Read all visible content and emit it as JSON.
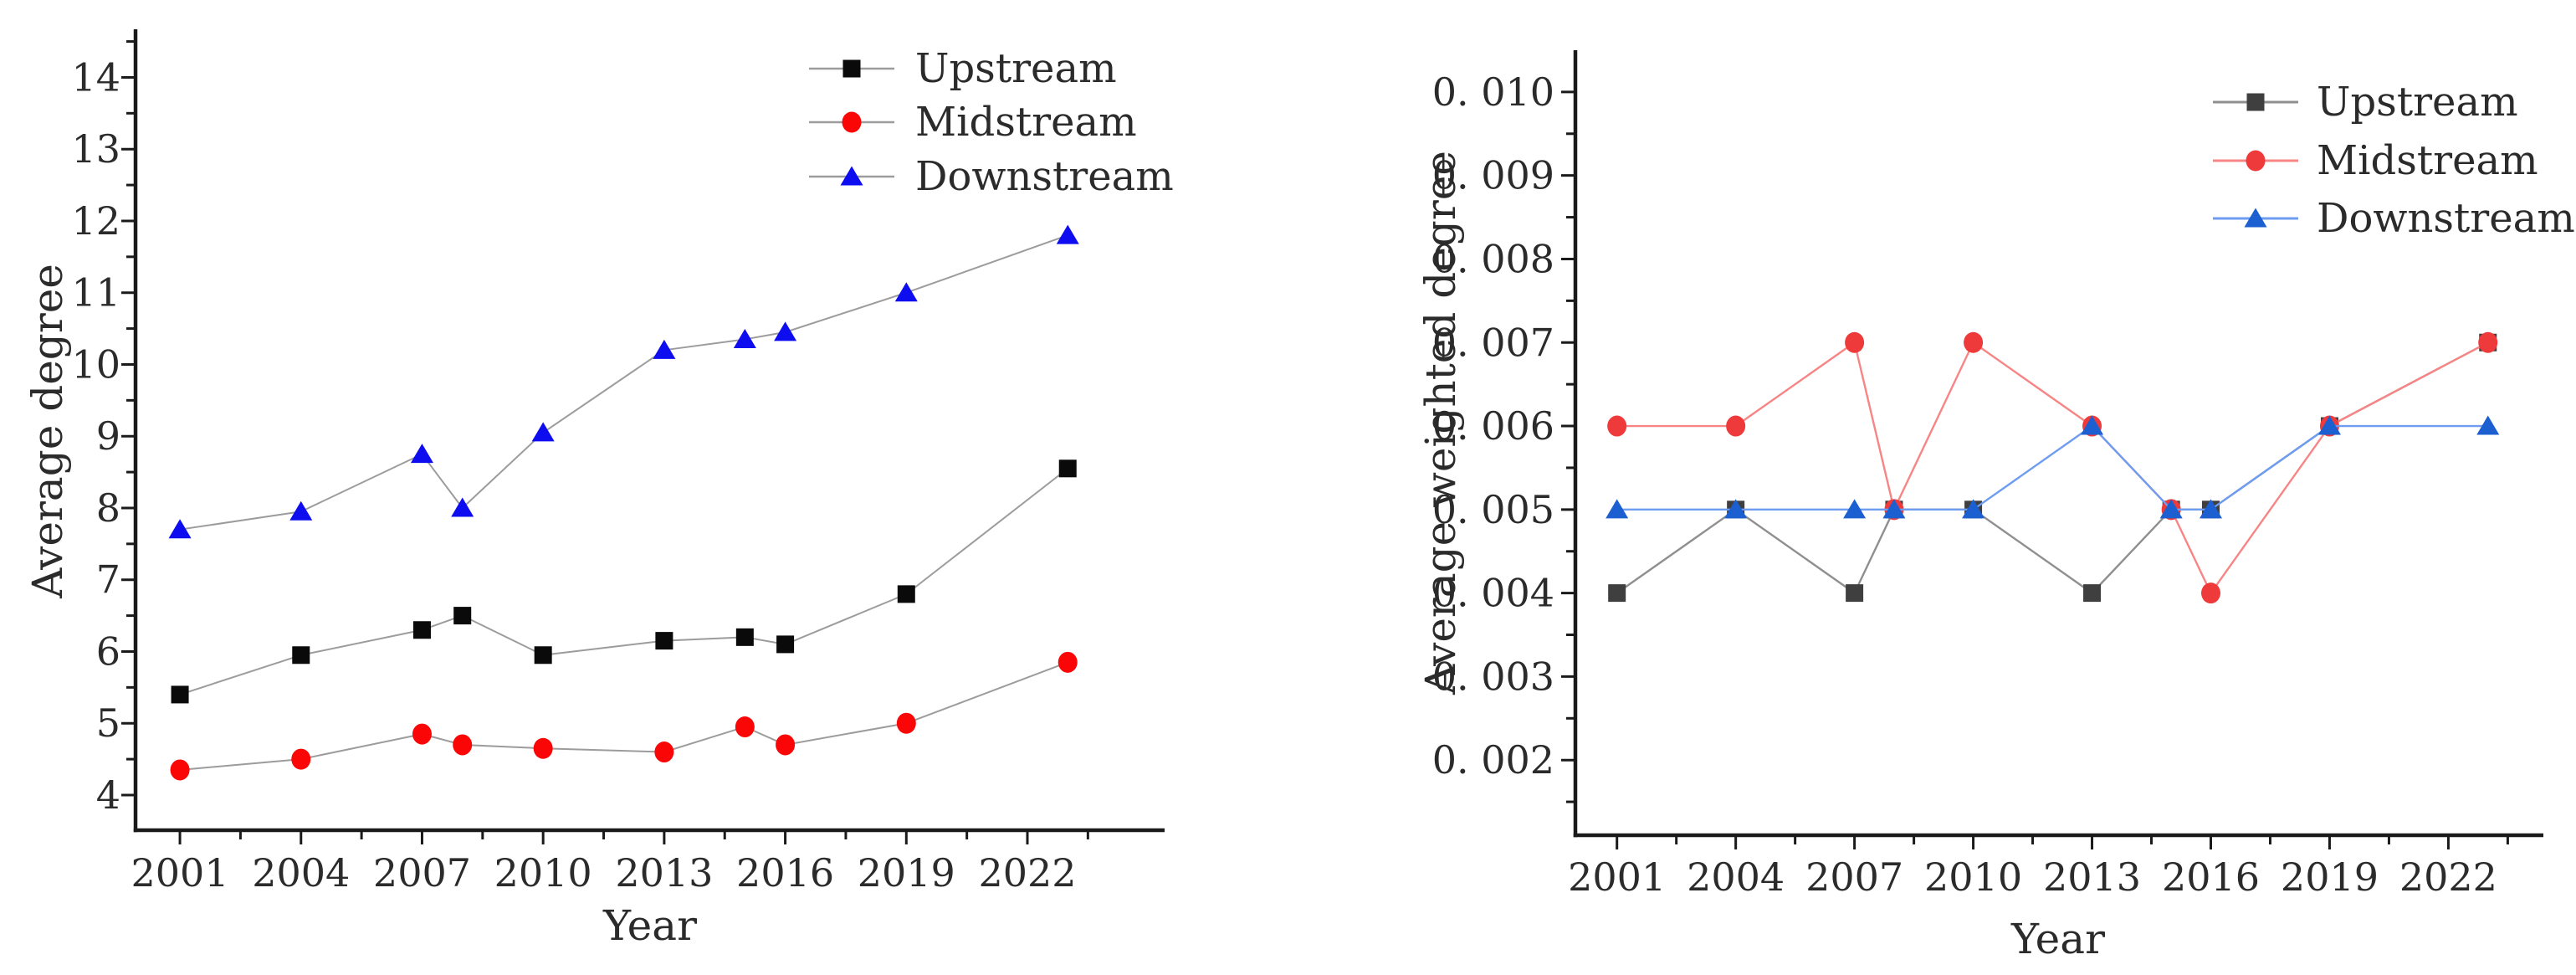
{
  "figure": {
    "background_color": "#ffffff",
    "text_color": "#2b2b2b",
    "axis_color": "#1a1a1a"
  },
  "chart_data": [
    {
      "type": "line",
      "title": "",
      "xlabel": "Year",
      "ylabel": "Average degree",
      "x": [
        2001,
        2004,
        2007,
        2008,
        2010,
        2013,
        2015,
        2016,
        2019,
        2023
      ],
      "xlim": [
        1999.9,
        2025.4
      ],
      "ylim": [
        3.51,
        14.67
      ],
      "grid": false,
      "legend_position": "inside-top-right",
      "x_ticks": [
        {
          "v": 2001,
          "label": "2001"
        },
        {
          "v": 2004,
          "label": "2004"
        },
        {
          "v": 2007,
          "label": "2007"
        },
        {
          "v": 2010,
          "label": "2010"
        },
        {
          "v": 2013,
          "label": "2013"
        },
        {
          "v": 2016,
          "label": "2016"
        },
        {
          "v": 2019,
          "label": "2019"
        },
        {
          "v": 2022,
          "label": "2022"
        }
      ],
      "y_ticks": [
        {
          "v": 4,
          "label": "4"
        },
        {
          "v": 5,
          "label": "5"
        },
        {
          "v": 6,
          "label": "6"
        },
        {
          "v": 7,
          "label": "7"
        },
        {
          "v": 8,
          "label": "8"
        },
        {
          "v": 9,
          "label": "9"
        },
        {
          "v": 10,
          "label": "10"
        },
        {
          "v": 11,
          "label": "11"
        },
        {
          "v": 12,
          "label": "12"
        },
        {
          "v": 13,
          "label": "13"
        },
        {
          "v": 14,
          "label": "14"
        }
      ],
      "series": [
        {
          "name": "Upstream",
          "marker": "square",
          "marker_color": "#0a0a0a",
          "line_color": "#9c9c9c",
          "values": [
            5.4,
            5.95,
            6.3,
            6.5,
            5.95,
            6.15,
            6.2,
            6.1,
            6.8,
            8.55
          ]
        },
        {
          "name": "Midstream",
          "marker": "circle",
          "marker_color": "#fb0606",
          "line_color": "#9c9c9c",
          "values": [
            4.35,
            4.5,
            4.85,
            4.7,
            4.65,
            4.6,
            4.95,
            4.7,
            5.0,
            5.85
          ]
        },
        {
          "name": "Downstream",
          "marker": "triangle",
          "marker_color": "#0d0df0",
          "line_color": "#9c9c9c",
          "values": [
            7.7,
            7.95,
            8.75,
            8.0,
            9.05,
            10.2,
            10.35,
            10.45,
            11.0,
            11.8
          ]
        }
      ]
    },
    {
      "type": "line",
      "title": "",
      "xlabel": "Year",
      "ylabel": "Average weighted degree",
      "x": [
        2001,
        2004,
        2007,
        2008,
        2010,
        2013,
        2015,
        2016,
        2019,
        2023
      ],
      "xlim": [
        1999.95,
        2024.4
      ],
      "ylim": [
        0.0011,
        0.0105
      ],
      "grid": false,
      "legend_position": "inside-top-right",
      "x_ticks": [
        {
          "v": 2001,
          "label": "2001"
        },
        {
          "v": 2004,
          "label": "2004"
        },
        {
          "v": 2007,
          "label": "2007"
        },
        {
          "v": 2010,
          "label": "2010"
        },
        {
          "v": 2013,
          "label": "2013"
        },
        {
          "v": 2016,
          "label": "2016"
        },
        {
          "v": 2019,
          "label": "2019"
        },
        {
          "v": 2022,
          "label": "2022"
        }
      ],
      "y_ticks": [
        {
          "v": 0.002,
          "label": "0. 002"
        },
        {
          "v": 0.003,
          "label": "0. 003"
        },
        {
          "v": 0.004,
          "label": "0. 004"
        },
        {
          "v": 0.005,
          "label": "0. 005"
        },
        {
          "v": 0.006,
          "label": "0. 006"
        },
        {
          "v": 0.007,
          "label": "0. 007"
        },
        {
          "v": 0.008,
          "label": "0. 008"
        },
        {
          "v": 0.009,
          "label": "0. 009"
        },
        {
          "v": 0.01,
          "label": "0. 010"
        }
      ],
      "series": [
        {
          "name": "Upstream",
          "marker": "square",
          "marker_color": "#3f3f3f",
          "line_color": "#8f8f8f",
          "values": [
            0.004,
            0.005,
            0.004,
            0.005,
            0.005,
            0.004,
            0.005,
            0.005,
            0.006,
            0.007
          ]
        },
        {
          "name": "Midstream",
          "marker": "circle",
          "marker_color": "#ee3a3a",
          "line_color": "#f88585",
          "values": [
            0.006,
            0.006,
            0.007,
            0.005,
            0.007,
            0.006,
            0.005,
            0.004,
            0.006,
            0.007
          ]
        },
        {
          "name": "Downstream",
          "marker": "triangle",
          "marker_color": "#1b5fd0",
          "line_color": "#6d9cf0",
          "values": [
            0.005,
            0.005,
            0.005,
            0.005,
            0.005,
            0.006,
            0.005,
            0.005,
            0.006,
            0.006
          ]
        }
      ]
    }
  ]
}
